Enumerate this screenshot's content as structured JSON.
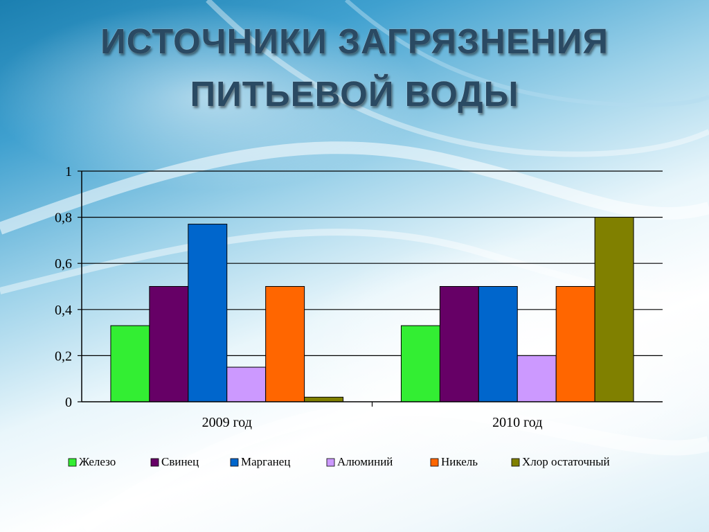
{
  "slide": {
    "title_line1": "ИСТОЧНИКИ ЗАГРЯЗНЕНИЯ",
    "title_line2": "ПИТЬЕВОЙ ВОДЫ"
  },
  "chart_data": {
    "type": "bar",
    "categories": [
      "2009 год",
      "2010 год"
    ],
    "series": [
      {
        "name": "Железо",
        "values": [
          0.33,
          0.33
        ],
        "color": "#33ee33"
      },
      {
        "name": "Свинец",
        "values": [
          0.5,
          0.5
        ],
        "color": "#660066"
      },
      {
        "name": "Марганец",
        "values": [
          0.77,
          0.5
        ],
        "color": "#0066cc"
      },
      {
        "name": "Алюминий",
        "values": [
          0.15,
          0.2
        ],
        "color": "#cc99ff"
      },
      {
        "name": "Никель",
        "values": [
          0.5,
          0.5
        ],
        "color": "#ff6600"
      },
      {
        "name": "Хлор остаточный",
        "values": [
          0.02,
          0.8
        ],
        "color": "#808000"
      }
    ],
    "ylim": [
      0,
      1
    ],
    "yticks": [
      "0",
      "0,2",
      "0,4",
      "0,6",
      "0,8",
      "1"
    ],
    "grid": true,
    "legend_position": "bottom",
    "xlabel": "",
    "ylabel": "",
    "title": "ИСТОЧНИКИ ЗАГРЯЗНЕНИЯ ПИТЬЕВОЙ ВОДЫ"
  }
}
